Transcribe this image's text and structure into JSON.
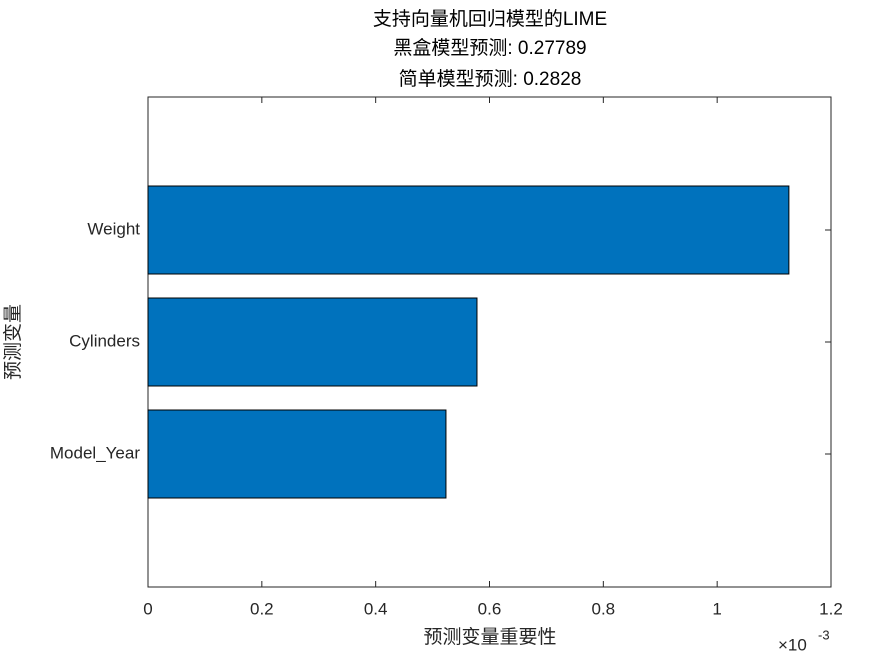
{
  "chart_data": {
    "type": "hbar",
    "title": [
      "支持向量机回归模型的LIME",
      "黑盒模型预测: 0.27789",
      "简单模型预测: 0.2828"
    ],
    "xlabel": "预测变量重要性",
    "ylabel": "预测变量",
    "categories": [
      "Weight",
      "Cylinders",
      "Model_Year"
    ],
    "values": [
      1.126,
      0.578,
      0.5235
    ],
    "color": "#0072bd",
    "xlim": [
      0,
      1.2
    ],
    "xticks": [
      0,
      0.2,
      0.4,
      0.6,
      0.8,
      1,
      1.2
    ],
    "x_multiplier": {
      "base": "×10",
      "exponent": "-3"
    },
    "grid": false
  }
}
